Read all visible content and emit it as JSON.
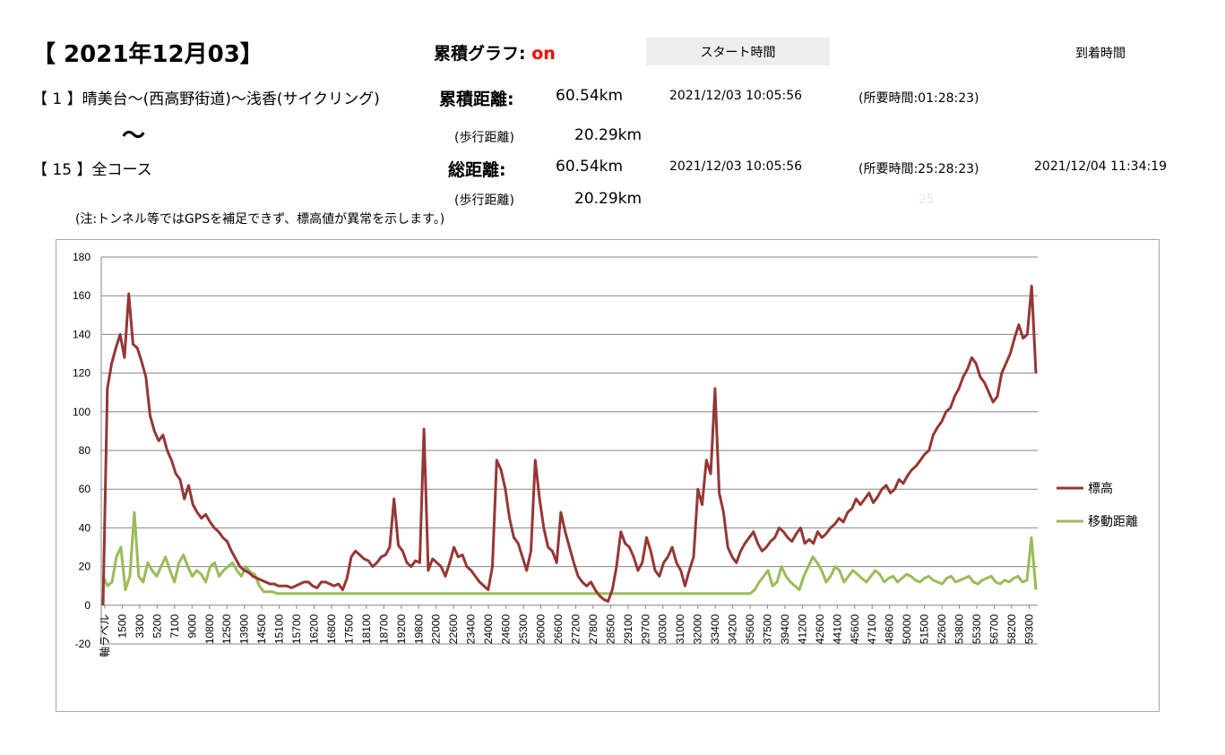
{
  "header": {
    "title": "【 2021年12月03】",
    "cumulative_label": "累積グラフ:",
    "cumulative_value": "on",
    "start_time_label": "スタート時間",
    "arrival_time_label": "到着時間"
  },
  "course_first": {
    "name": "【 1 】晴美台～(西高野街道)～浅香(サイクリング)",
    "distance_label": "累積距離:",
    "distance": "60.54km",
    "start_time": "2021/12/03 10:05:56",
    "duration": "(所要時間:01:28:23)",
    "walk_label": "(歩行距離)",
    "walk_distance": "20.29km"
  },
  "range_sep": "～",
  "course_all": {
    "name": "【 15 】全コース",
    "distance_label": "総距離:",
    "distance": "60.54km",
    "start_time": "2021/12/03 10:05:56",
    "duration": "(所要時間:25:28:23)",
    "end_time": "2021/12/04 11:34:19",
    "walk_label": "(歩行距離)",
    "walk_distance": "20.29km",
    "faint_number": "25"
  },
  "note": "(注:トンネル等ではGPSを補足できず、標高値が異常を示します。)",
  "colors": {
    "elevation": "#953735",
    "distance": "#9bbb59",
    "grid": "#868686"
  },
  "chart_data": {
    "type": "line",
    "title": "",
    "ylim": [
      -20,
      180
    ],
    "yticks": [
      -20,
      0,
      20,
      40,
      60,
      80,
      100,
      120,
      140,
      160,
      180
    ],
    "grid": "horizontal",
    "legend_position": "right",
    "x_first_label": "軸ラベル",
    "x_ticks": [
      "1500",
      "3300",
      "5200",
      "7100",
      "9000",
      "10800",
      "12500",
      "13900",
      "14500",
      "15100",
      "15700",
      "16200",
      "16800",
      "17500",
      "18100",
      "18700",
      "19200",
      "19800",
      "22000",
      "22600",
      "23400",
      "24000",
      "24600",
      "25300",
      "26000",
      "26600",
      "27200",
      "27800",
      "28500",
      "29100",
      "29700",
      "30300",
      "31000",
      "32000",
      "33400",
      "34200",
      "35600",
      "37500",
      "39400",
      "41200",
      "42600",
      "44100",
      "45600",
      "47100",
      "48600",
      "50000",
      "51500",
      "52600",
      "53800",
      "55300",
      "56700",
      "58200",
      "59300"
    ],
    "series": [
      {
        "name": "標高",
        "values": [
          0,
          112,
          125,
          133,
          140,
          128,
          161,
          135,
          133,
          126,
          118,
          98,
          90,
          85,
          88,
          80,
          75,
          68,
          65,
          55,
          62,
          52,
          48,
          45,
          47,
          43,
          40,
          38,
          35,
          33,
          28,
          24,
          20,
          18,
          17,
          15,
          14,
          13,
          12,
          11,
          11,
          10,
          10,
          10,
          9,
          10,
          11,
          12,
          12,
          10,
          9,
          12,
          12,
          11,
          10,
          11,
          8,
          14,
          25,
          28,
          26,
          24,
          23,
          20,
          22,
          25,
          26,
          30,
          55,
          31,
          28,
          22,
          20,
          23,
          22,
          91,
          18,
          24,
          22,
          20,
          15,
          22,
          30,
          25,
          26,
          20,
          18,
          15,
          12,
          10,
          8,
          20,
          75,
          70,
          60,
          45,
          35,
          32,
          25,
          18,
          28,
          75,
          55,
          40,
          30,
          28,
          22,
          48,
          38,
          30,
          22,
          15,
          12,
          10,
          12,
          8,
          5,
          3,
          2,
          8,
          20,
          38,
          32,
          30,
          25,
          18,
          22,
          35,
          28,
          18,
          15,
          22,
          25,
          30,
          22,
          18,
          10,
          18,
          25,
          60,
          52,
          75,
          68,
          112,
          58,
          48,
          30,
          25,
          22,
          28,
          32,
          35,
          38,
          32,
          28,
          30,
          33,
          35,
          40,
          38,
          35,
          33,
          37,
          40,
          32,
          34,
          32,
          38,
          35,
          37,
          40,
          42,
          45,
          43,
          48,
          50,
          55,
          52,
          55,
          58,
          53,
          56,
          60,
          62,
          58,
          60,
          65,
          63,
          67,
          70,
          72,
          75,
          78,
          80,
          88,
          92,
          95,
          100,
          102,
          108,
          112,
          118,
          122,
          128,
          125,
          118,
          115,
          110,
          105,
          108,
          120,
          125,
          130,
          138,
          145,
          138,
          140,
          165,
          120
        ]
      },
      {
        "name": "移動距離",
        "values": [
          15,
          10,
          12,
          25,
          30,
          8,
          15,
          48,
          15,
          12,
          22,
          18,
          15,
          20,
          25,
          18,
          12,
          22,
          26,
          20,
          15,
          18,
          16,
          12,
          20,
          22,
          15,
          18,
          20,
          22,
          18,
          15,
          20,
          17,
          16,
          10,
          7,
          7,
          7,
          6,
          6,
          6,
          6,
          6,
          6,
          6,
          6,
          6,
          6,
          6,
          6,
          6,
          6,
          6,
          6,
          6,
          6,
          6,
          6,
          6,
          6,
          6,
          6,
          6,
          6,
          6,
          6,
          6,
          6,
          6,
          6,
          6,
          6,
          6,
          6,
          6,
          6,
          6,
          6,
          6,
          6,
          6,
          6,
          6,
          6,
          6,
          6,
          6,
          6,
          6,
          6,
          6,
          6,
          6,
          6,
          6,
          6,
          6,
          6,
          6,
          6,
          6,
          6,
          6,
          6,
          6,
          6,
          6,
          6,
          6,
          6,
          6,
          6,
          6,
          6,
          6,
          6,
          6,
          6,
          6,
          6,
          6,
          6,
          6,
          6,
          6,
          6,
          6,
          6,
          6,
          6,
          6,
          6,
          6,
          6,
          6,
          6,
          6,
          6,
          6,
          6,
          6,
          6,
          6,
          6,
          6,
          8,
          12,
          15,
          18,
          10,
          12,
          20,
          15,
          12,
          10,
          8,
          15,
          20,
          25,
          22,
          18,
          12,
          15,
          20,
          18,
          12,
          15,
          18,
          16,
          14,
          12,
          15,
          18,
          16,
          12,
          14,
          15,
          12,
          14,
          16,
          15,
          13,
          12,
          14,
          15,
          13,
          12,
          11,
          14,
          15,
          12,
          13,
          14,
          15,
          12,
          11,
          13,
          14,
          15,
          12,
          11,
          13,
          12,
          14,
          15,
          12,
          13,
          35,
          8
        ]
      }
    ]
  }
}
